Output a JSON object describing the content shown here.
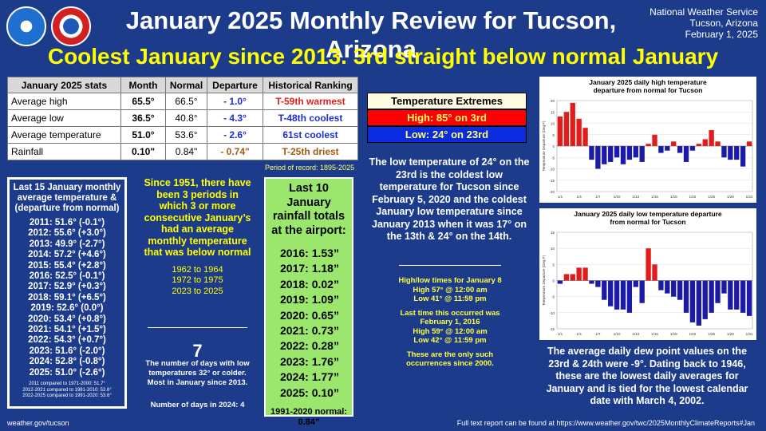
{
  "header": {
    "title": "January 2025 Monthly Review for Tucson, Arizona",
    "office": "National Weather Service",
    "location": "Tucson, Arizona",
    "date": "February 1, 2025",
    "subtitle": "Coolest January since 2013. 3rd straight below normal January"
  },
  "stats_table": {
    "headers": [
      "January 2025 stats",
      "Month",
      "Normal",
      "Departure",
      "Historical Ranking"
    ],
    "rows": [
      {
        "label": "Average high",
        "month": "65.5°",
        "normal": "66.5°",
        "departure": "- 1.0°",
        "ranking": "T-59th warmest"
      },
      {
        "label": "Average low",
        "month": "36.5°",
        "normal": "40.8°",
        "departure": "- 4.3°",
        "ranking": "T-48th coolest"
      },
      {
        "label": "Average temperature",
        "month": "51.0°",
        "normal": "53.6°",
        "departure": "- 2.6°",
        "ranking": "61st coolest"
      },
      {
        "label": "Rainfall",
        "month": "0.10\"",
        "normal": "0.84\"",
        "departure": "- 0.74\"",
        "ranking": "T-25th driest"
      }
    ],
    "period": "Period of record: 1895-2025"
  },
  "extremes": {
    "header": "Temperature Extremes",
    "high": "High: 85° on 3rd",
    "low": "Low: 24° on 23rd"
  },
  "cold_note": "The low temperature of 24° on the 23rd is the coldest low temperature for Tucson since February 5, 2020 and the coldest January low temperature since January 2013 when it was 17° on the 13th & 24° on the 14th.",
  "times": {
    "t1": "High/low times for January 8",
    "t2": "High 57° @ 12:00 am",
    "t3": "Low 41° @ 11:59 pm",
    "t4": "Last time this occurred was",
    "t5": "February 1, 2016",
    "t6": "High 59° @ 12:00 am",
    "t7": "Low 42° @ 11:59 pm",
    "t8": "These are the only such",
    "t9": "occurrences since 2000."
  },
  "dew_note": "The average daily dew point values on the 23rd & 24th were -9°. Dating back to 1946, these are the lowest daily averages for January and is tied for the lowest calendar date with March 4, 2002.",
  "last15": {
    "header": "Last 15 January monthly average temperature & (departure from normal)",
    "rows": [
      "2011:  51.6° (-0.1°)",
      "2012:  55.6° (+3.0°)",
      "2013:  49.9° (-2.7°)",
      "2014:  57.2° (+4.6°)",
      "2015:  55.4° (+2.8°)",
      "2016:  52.5° (-0.1°)",
      "2017:  52.9° (+0.3°)",
      "2018:  59.1° (+6.5°)",
      "2019:  52.6° (0.0°)",
      "2020:  53.4° (+0.8°)",
      "2021:  54.1° (+1.5°)",
      "2022:  54.3° (+0.7°)",
      "2023:  51.6° (-2.0°)",
      "2024:  52.8° (-0.8°)",
      "2025:  51.0° (-2.6°)"
    ],
    "note1": "2011 compared to 1971-2000: 51.7°",
    "note2": "2012-2021 compared to 1981-2010: 52.6°",
    "note3": "2022-2025 compared to 1991-2020: 53.6°"
  },
  "periods": {
    "header": "Since 1951, there have been 3 periods in which 3 or more consecutive January’s had an average monthly temperature that was below normal",
    "p1": "1962 to 1964",
    "p2": "1972 to 1975",
    "p3": "2023 to 2025"
  },
  "cold_days": {
    "count": "7",
    "text": "The number of days with low temperatures 32° or colder. Most in January since 2013.",
    "days2024": "Number of days in 2024: 4"
  },
  "rainfall": {
    "header": "Last 10 January rainfall totals at the airport:",
    "rows": [
      "2016:  1.53”",
      "2017:  1.18”",
      "2018:  0.02”",
      "2019:  1.09”",
      "2020:  0.65”",
      "2021:  0.73”",
      "2022:  0.28”",
      "2023:  1.76”",
      "2024:  1.77”",
      "2025:  0.10”"
    ],
    "footer": "1991-2020 normal: 0.84”"
  },
  "footer": {
    "left": "weather.gov/tucson",
    "right": "Full text report can be found at https://www.weather.gov/twc/2025MonthlyClimateReports#Jan"
  },
  "chart_data": [
    {
      "type": "bar",
      "title": "January 2025 daily high temperature departure from normal for Tucson",
      "ylabel": "Temperature Departure (Deg F)",
      "ylim": [
        -20,
        20
      ],
      "yticks": [
        20,
        15,
        10,
        5,
        0,
        -5,
        -10,
        -15,
        -20
      ],
      "xticks": [
        "1/1",
        "1/4",
        "1/7",
        "1/10",
        "1/13",
        "1/16",
        "1/19",
        "1/22",
        "1/25",
        "1/28",
        "1/31"
      ],
      "x": [
        1,
        2,
        3,
        4,
        5,
        6,
        7,
        8,
        9,
        10,
        11,
        12,
        13,
        14,
        15,
        16,
        17,
        18,
        19,
        20,
        21,
        22,
        23,
        24,
        25,
        26,
        27,
        28,
        29,
        30,
        31
      ],
      "values": [
        13,
        15,
        19,
        12,
        8,
        -6,
        -10,
        -8,
        -7,
        -5,
        -8,
        -6,
        -5,
        -7,
        1,
        5,
        -3,
        -2,
        2,
        -3,
        -7,
        -2,
        1,
        3,
        7,
        2,
        -5,
        -6,
        -6,
        -9,
        2
      ]
    },
    {
      "type": "bar",
      "title": "January 2025 daily low temperature departure from normal for Tucson",
      "ylabel": "Temperature Departure (Deg F)",
      "ylim": [
        -15,
        15
      ],
      "yticks": [
        15,
        10,
        5,
        0,
        -5,
        -10,
        -15
      ],
      "xticks": [
        "1/1",
        "1/4",
        "1/7",
        "1/10",
        "1/13",
        "1/16",
        "1/19",
        "1/22",
        "1/25",
        "1/28",
        "1/31"
      ],
      "x": [
        1,
        2,
        3,
        4,
        5,
        6,
        7,
        8,
        9,
        10,
        11,
        12,
        13,
        14,
        15,
        16,
        17,
        18,
        19,
        20,
        21,
        22,
        23,
        24,
        25,
        26,
        27,
        28,
        29,
        30,
        31
      ],
      "values": [
        -1,
        2,
        2,
        4,
        4,
        -1,
        -2,
        -6,
        -8,
        -9,
        -9,
        -10,
        -2,
        -7,
        10,
        5,
        -3,
        -4,
        -5,
        -6,
        -10,
        -13,
        -14,
        -12,
        -10,
        -7,
        -4,
        -9,
        -9,
        -10,
        -11
      ]
    }
  ]
}
